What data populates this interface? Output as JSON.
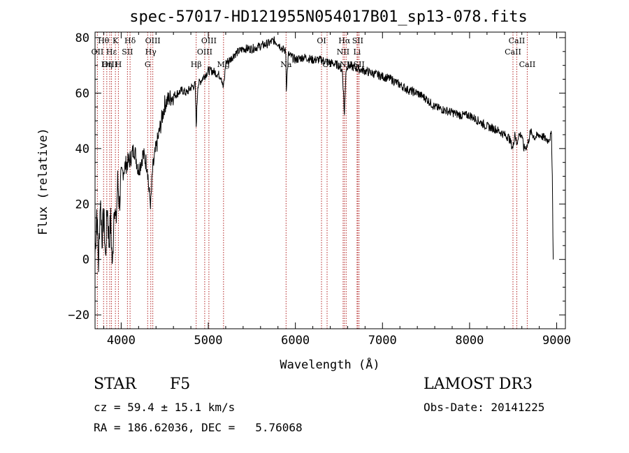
{
  "chart_data": {
    "type": "line",
    "title": "spec-57017-HD121955N054017B01_sp13-078.fits",
    "xlabel": "Wavelength (Å)",
    "ylabel": "Flux (relative)",
    "xlim": [
      3700,
      9100
    ],
    "ylim": [
      -25,
      82
    ],
    "xticks": [
      4000,
      5000,
      6000,
      7000,
      8000,
      9000
    ],
    "yticks": [
      -20,
      0,
      20,
      40,
      60,
      80
    ],
    "series": [
      {
        "name": "flux",
        "x": [
          3700,
          3720,
          3740,
          3760,
          3780,
          3800,
          3820,
          3840,
          3860,
          3880,
          3900,
          3920,
          3940,
          3960,
          3980,
          4000,
          4050,
          4100,
          4150,
          4200,
          4250,
          4300,
          4320,
          4340,
          4360,
          4400,
          4450,
          4500,
          4550,
          4600,
          4650,
          4700,
          4750,
          4800,
          4850,
          4861,
          4880,
          4950,
          5000,
          5050,
          5100,
          5150,
          5170,
          5183,
          5200,
          5250,
          5300,
          5400,
          5500,
          5600,
          5700,
          5750,
          5800,
          5850,
          5890,
          5896,
          5920,
          6000,
          6100,
          6200,
          6300,
          6400,
          6500,
          6540,
          6563,
          6580,
          6600,
          6700,
          6800,
          6900,
          7000,
          7100,
          7200,
          7300,
          7400,
          7500,
          7600,
          7700,
          7800,
          7900,
          8000,
          8100,
          8200,
          8300,
          8400,
          8450,
          8498,
          8520,
          8542,
          8560,
          8600,
          8620,
          8662,
          8700,
          8750,
          8800,
          8850,
          8900,
          8940,
          8950,
          8960
        ],
        "y": [
          2,
          18,
          -2,
          22,
          8,
          16,
          0,
          20,
          6,
          14,
          -4,
          22,
          12,
          28,
          20,
          30,
          34,
          36,
          40,
          32,
          38,
          34,
          24,
          20,
          32,
          40,
          48,
          56,
          58,
          59,
          60,
          61,
          60,
          62,
          63,
          48,
          63,
          66,
          68,
          68,
          67,
          66,
          62,
          64,
          71,
          72,
          74,
          76,
          76,
          77,
          78,
          79,
          78,
          76,
          75,
          62,
          74,
          72,
          73,
          72,
          72,
          71,
          70,
          68,
          52,
          68,
          70,
          69,
          68,
          67,
          66,
          65,
          63,
          61,
          60,
          58,
          55,
          54,
          53,
          52,
          52,
          50,
          48,
          47,
          45,
          44,
          40,
          46,
          41,
          45,
          45,
          40,
          41,
          46,
          44,
          45,
          44,
          43,
          45,
          30,
          0
        ]
      }
    ],
    "line_markers": [
      {
        "label": "Hθ",
        "wavelength": 3798,
        "row": 0
      },
      {
        "label": "OII",
        "wavelength": 3727,
        "row": 1
      },
      {
        "label": "OIII",
        "wavelength": 3869,
        "row": 2
      },
      {
        "label": "Hε",
        "wavelength": 3889,
        "row": 1
      },
      {
        "label": "K",
        "wavelength": 3934,
        "row": 0
      },
      {
        "label": "Hη",
        "wavelength": 3835,
        "row": 2
      },
      {
        "label": "H",
        "wavelength": 3968,
        "row": 2
      },
      {
        "label": "SII",
        "wavelength": 4072,
        "row": 1
      },
      {
        "label": "Hδ",
        "wavelength": 4102,
        "row": 0
      },
      {
        "label": "OIII",
        "wavelength": 4363,
        "row": 0
      },
      {
        "label": "Hγ",
        "wavelength": 4340,
        "row": 1
      },
      {
        "label": "G",
        "wavelength": 4304,
        "row": 2
      },
      {
        "label": "Hβ",
        "wavelength": 4861,
        "row": 2
      },
      {
        "label": "OIII",
        "wavelength": 5007,
        "row": 0
      },
      {
        "label": "OIII",
        "wavelength": 4959,
        "row": 1
      },
      {
        "label": "Mg",
        "wavelength": 5175,
        "row": 2
      },
      {
        "label": "Na",
        "wavelength": 5893,
        "row": 2
      },
      {
        "label": "OI",
        "wavelength": 6300,
        "row": 0
      },
      {
        "label": "OI",
        "wavelength": 6364,
        "row": 2
      },
      {
        "label": "Hα",
        "wavelength": 6563,
        "row": 0
      },
      {
        "label": "NII",
        "wavelength": 6548,
        "row": 1
      },
      {
        "label": "NII",
        "wavelength": 6583,
        "row": 2
      },
      {
        "label": "SII",
        "wavelength": 6716,
        "row": 0
      },
      {
        "label": "Li",
        "wavelength": 6708,
        "row": 1
      },
      {
        "label": "SII",
        "wavelength": 6731,
        "row": 2
      },
      {
        "label": "CaII",
        "wavelength": 8542,
        "row": 0
      },
      {
        "label": "CaII",
        "wavelength": 8498,
        "row": 1
      },
      {
        "label": "CaII",
        "wavelength": 8662,
        "row": 2
      }
    ],
    "marker_color": "#b22222"
  },
  "info": {
    "object_type": "STAR",
    "object_class": "F5",
    "survey": "LAMOST DR3",
    "cz": "cz = 59.4 ± 15.1 km/s",
    "obs_date": "Obs-Date: 20141225",
    "radec": "RA = 186.62036, DEC =   5.76068"
  }
}
